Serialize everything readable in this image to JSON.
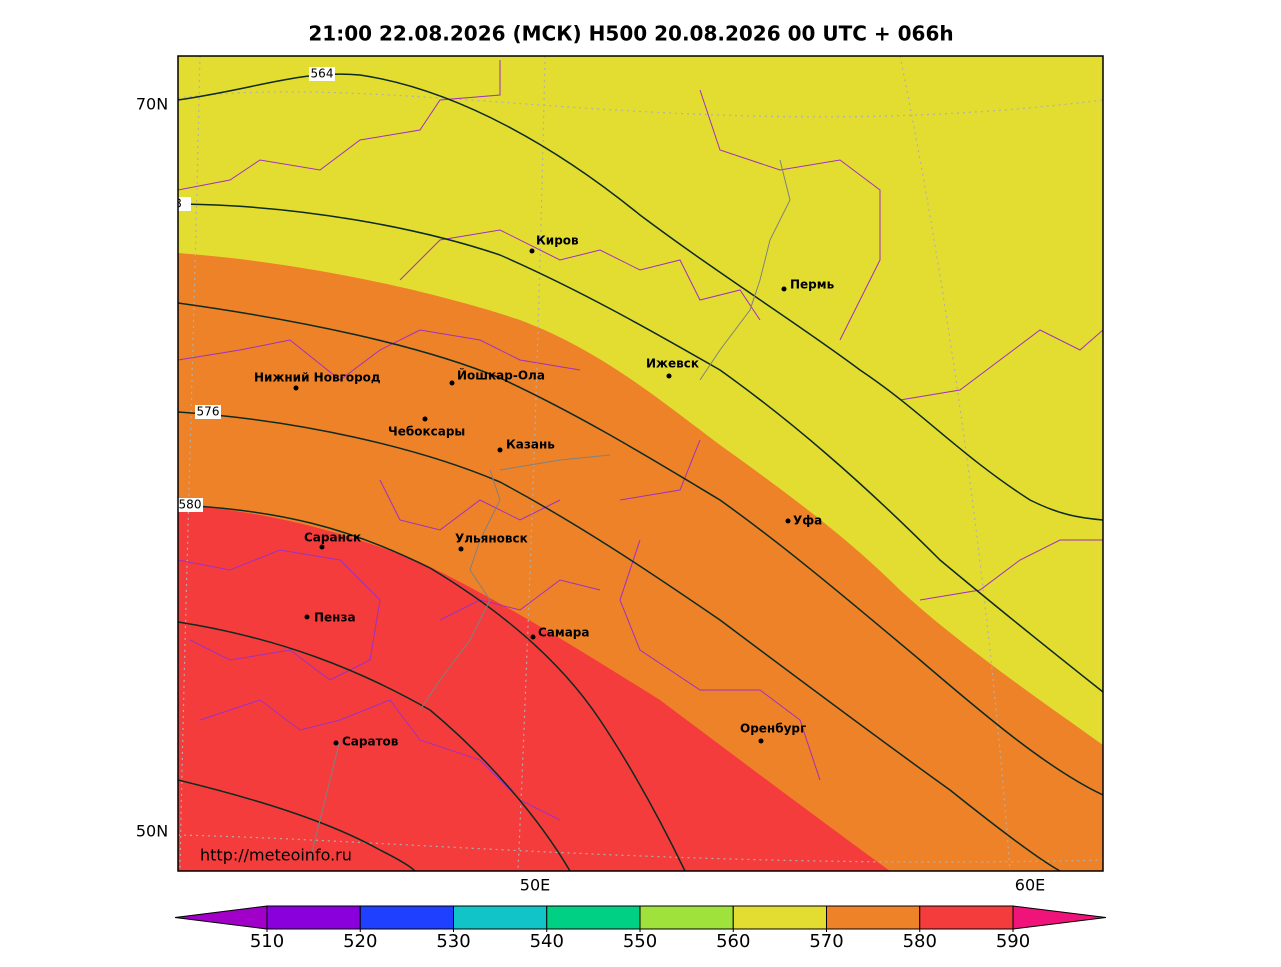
{
  "title": "21:00 22.08.2026 (МСК) H500  20.08.2026 00 UTC + 066h",
  "lat_labels": [
    "70N",
    "50N"
  ],
  "lon_labels": [
    "50E",
    "60E"
  ],
  "contour_labels": [
    "564",
    "8",
    "576",
    "580"
  ],
  "cities": [
    "Киров",
    "Пермь",
    "Нижний Новгород",
    "Йошкар-Ола",
    "Ижевск",
    "Чебоксары",
    "Казань",
    "Уфа",
    "Саранск",
    "Ульяновск",
    "Пенза",
    "Самара",
    "Оренбург",
    "Саратов"
  ],
  "url": "http://meteoinfo.ru",
  "colorbar": {
    "ticks": [
      510,
      520,
      530,
      540,
      550,
      560,
      570,
      580,
      590
    ],
    "colors": [
      "#a000c8",
      "#8a00dc",
      "#2040ff",
      "#10c4c8",
      "#00d084",
      "#a0e23c",
      "#e3dd32",
      "#ee8228",
      "#f53c3c",
      "#f0147a"
    ]
  }
}
